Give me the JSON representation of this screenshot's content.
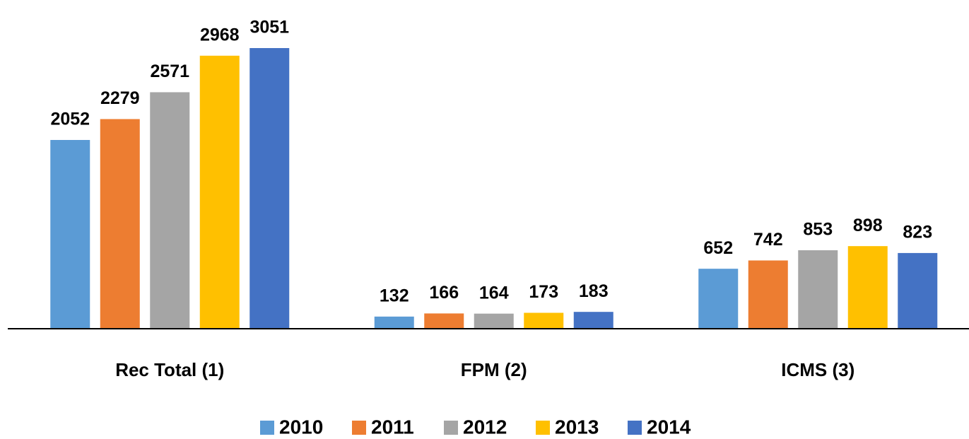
{
  "chart_data": {
    "type": "bar",
    "categories": [
      "Rec Total (1)",
      "FPM (2)",
      "ICMS (3)"
    ],
    "series": [
      {
        "name": "2010",
        "color": "#5b9bd5",
        "values": [
          2052,
          132,
          652
        ]
      },
      {
        "name": "2011",
        "color": "#ed7d31",
        "values": [
          2279,
          166,
          742
        ]
      },
      {
        "name": "2012",
        "color": "#a5a5a5",
        "values": [
          2571,
          164,
          853
        ]
      },
      {
        "name": "2013",
        "color": "#ffc000",
        "values": [
          2968,
          173,
          898
        ]
      },
      {
        "name": "2014",
        "color": "#4472c4",
        "values": [
          3051,
          183,
          823
        ]
      }
    ],
    "legend": "bottom"
  }
}
